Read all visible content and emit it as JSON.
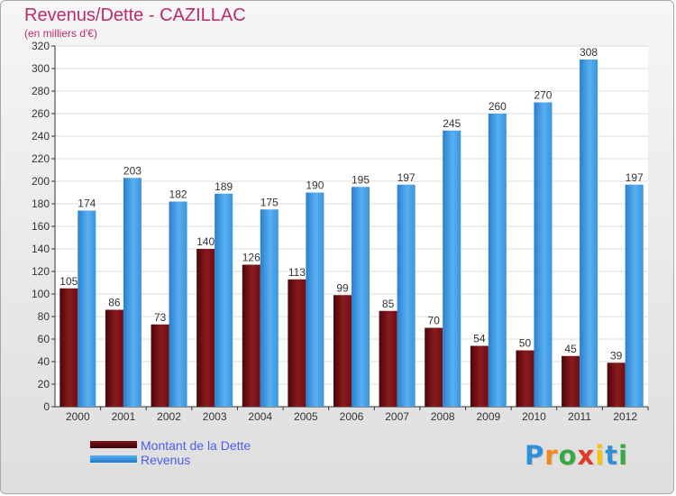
{
  "chart_data": {
    "type": "bar",
    "title": "Revenus/Dette - CAZILLAC",
    "subtitle": "(en milliers d'€)",
    "categories": [
      "2000",
      "2001",
      "2002",
      "2003",
      "2004",
      "2005",
      "2006",
      "2007",
      "2008",
      "2009",
      "2010",
      "2011",
      "2012"
    ],
    "series": [
      {
        "name": "Montant de la Dette",
        "color": "#7a1418",
        "values": [
          105,
          86,
          73,
          140,
          126,
          113,
          99,
          85,
          70,
          54,
          50,
          45,
          39
        ]
      },
      {
        "name": "Revenus",
        "color": "#3c9ae0",
        "values": [
          174,
          203,
          182,
          189,
          175,
          190,
          195,
          197,
          245,
          260,
          270,
          308,
          197
        ]
      }
    ],
    "ylim": [
      0,
      320
    ],
    "yticks": [
      0,
      20,
      40,
      60,
      80,
      100,
      120,
      140,
      160,
      180,
      200,
      220,
      240,
      260,
      280,
      300,
      320
    ],
    "grid": true,
    "legend": "bottom-left"
  },
  "logo": {
    "letters": [
      "P",
      "r",
      "o",
      "x",
      "i",
      "t",
      "i"
    ],
    "colors": [
      "#2f8fd8",
      "#f08a1c",
      "#37a842",
      "#e23a2a",
      "#f5c20f",
      "#2f8fd8",
      "#37a842"
    ]
  }
}
